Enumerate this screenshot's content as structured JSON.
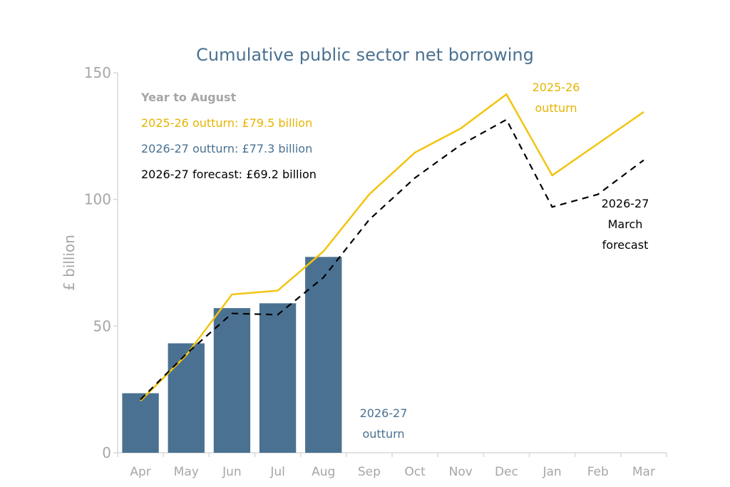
{
  "chart_data": {
    "type": "bar",
    "title": "Cumulative public sector net borrowing",
    "ylabel": "£ billion",
    "xlabel": "",
    "ylim": [
      0,
      150
    ],
    "yticks": [
      0,
      50,
      100,
      150
    ],
    "categories": [
      "Apr",
      "May",
      "Jun",
      "Jul",
      "Aug",
      "Sep",
      "Oct",
      "Nov",
      "Dec",
      "Jan",
      "Feb",
      "Mar"
    ],
    "series": [
      {
        "name": "2026-27 outturn",
        "type": "bar",
        "color": "#4a7191",
        "values": [
          23.5,
          43.2,
          57.1,
          59.0,
          77.3,
          null,
          null,
          null,
          null,
          null,
          null,
          null
        ]
      },
      {
        "name": "2025-26 outturn",
        "type": "line",
        "color": "#f2c40f",
        "values": [
          20.5,
          38.5,
          62.5,
          64.0,
          79.5,
          102.0,
          118.5,
          128.0,
          141.5,
          109.5,
          122.0,
          134.5
        ]
      },
      {
        "name": "2026-27 March forecast",
        "type": "line-dashed",
        "color": "#000000",
        "values": [
          21.0,
          39.0,
          55.0,
          54.5,
          69.2,
          92.0,
          108.5,
          121.5,
          131.5,
          97.0,
          102.0,
          115.5
        ]
      }
    ],
    "legend": {
      "heading": "Year to August",
      "items": [
        {
          "text": "2025-26 outturn: £79.5 billion",
          "color": "#e6b400"
        },
        {
          "text": "2026-27 outturn: £77.3 billion",
          "color": "#4a7191"
        },
        {
          "text": "2026-27 forecast: £69.2 billion",
          "color": "#000000"
        }
      ]
    },
    "annotations": [
      {
        "lines": [
          "2025-26",
          "outturn"
        ],
        "color": "#e6b400"
      },
      {
        "lines": [
          "2026-27",
          "March",
          "forecast"
        ],
        "color": "#000000"
      },
      {
        "lines": [
          "2026-27",
          "outturn"
        ],
        "color": "#4a7191"
      }
    ]
  },
  "colors": {
    "axis": "#d9d9d9",
    "tick_text": "#a6a6a6",
    "legend_heading": "#a6a6a6"
  }
}
